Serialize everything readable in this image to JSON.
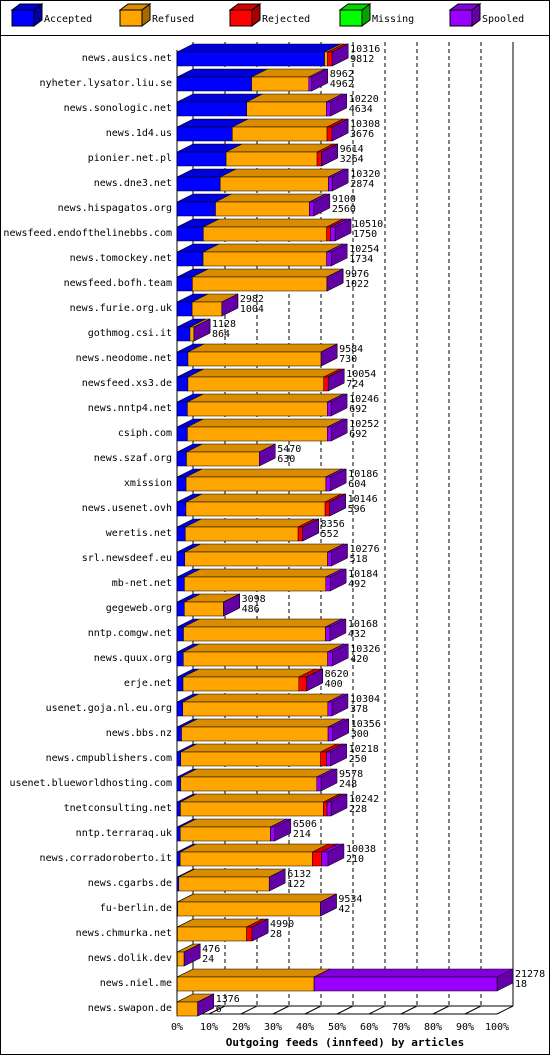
{
  "chart_data": {
    "type": "stacked-bar-3d",
    "orientation": "horizontal",
    "x_label": "Outgoing feeds (innfeed) by articles",
    "categories": [
      "news.ausics.net",
      "nyheter.lysator.liu.se",
      "news.sonologic.net",
      "news.1d4.us",
      "pionier.net.pl",
      "news.dne3.net",
      "news.hispagatos.org",
      "newsfeed.endofthelinebbs.com",
      "news.tomockey.net",
      "newsfeed.bofh.team",
      "news.furie.org.uk",
      "gothmog.csi.it",
      "news.neodome.net",
      "newsfeed.xs3.de",
      "news.nntp4.net",
      "csiph.com",
      "news.szaf.org",
      "xmission",
      "news.usenet.ovh",
      "weretis.net",
      "srl.newsdeef.eu",
      "mb-net.net",
      "gegeweb.org",
      "nntp.comgw.net",
      "news.quux.org",
      "erje.net",
      "usenet.goja.nl.eu.org",
      "news.bbs.nz",
      "news.cmpublishers.com",
      "usenet.blueworldhosting.com",
      "tnetconsulting.net",
      "nntp.terraraq.uk",
      "news.corradoroberto.it",
      "news.cgarbs.de",
      "fu-berlin.de",
      "news.chmurka.net",
      "news.dolik.dev",
      "news.niel.me",
      "news.swapon.de"
    ],
    "totals": [
      10316,
      8962,
      10220,
      10308,
      9614,
      10320,
      9100,
      10510,
      10254,
      9976,
      2982,
      1128,
      9584,
      10054,
      10246,
      10252,
      5470,
      10186,
      10146,
      8356,
      10276,
      10184,
      3098,
      10168,
      10326,
      8620,
      10304,
      10356,
      10218,
      9578,
      10242,
      6506,
      10038,
      6132,
      9534,
      4990,
      476,
      21278,
      1376
    ],
    "series": [
      {
        "name": "Accepted",
        "color": "#0000ff",
        "values": [
          9812,
          4962,
          4634,
          3676,
          3264,
          2874,
          2560,
          1750,
          1734,
          1022,
          1004,
          864,
          730,
          724,
          692,
          692,
          630,
          604,
          596,
          552,
          518,
          492,
          486,
          432,
          420,
          400,
          378,
          300,
          250,
          248,
          228,
          214,
          210,
          122,
          42,
          28,
          24,
          18,
          6
        ]
      },
      {
        "name": "Refused",
        "color": "#ffa500",
        "values": [
          200,
          3800,
          5300,
          6300,
          6050,
          7200,
          6250,
          8200,
          8220,
          8954,
          1978,
          264,
          8854,
          9030,
          9300,
          9300,
          4840,
          9300,
          9250,
          7500,
          9500,
          9400,
          2612,
          9450,
          9600,
          7700,
          9650,
          9750,
          9300,
          9050,
          9500,
          6000,
          8800,
          6010,
          9492,
          4600,
          452,
          9100,
          1370
        ]
      },
      {
        "name": "Rejected",
        "color": "#ff0000",
        "values": [
          304,
          0,
          0,
          332,
          300,
          0,
          0,
          260,
          0,
          0,
          0,
          0,
          0,
          300,
          0,
          0,
          0,
          0,
          300,
          304,
          0,
          0,
          0,
          0,
          0,
          520,
          0,
          0,
          400,
          0,
          250,
          0,
          600,
          0,
          0,
          362,
          0,
          0,
          0
        ]
      },
      {
        "name": "Missing",
        "color": "#00ff00",
        "values": [
          0,
          0,
          0,
          0,
          0,
          0,
          0,
          0,
          0,
          0,
          0,
          0,
          0,
          0,
          0,
          0,
          0,
          0,
          0,
          0,
          0,
          0,
          0,
          0,
          0,
          0,
          0,
          0,
          0,
          0,
          0,
          0,
          0,
          0,
          0,
          0,
          0,
          0,
          0
        ]
      },
      {
        "name": "Spooled",
        "color": "#9900ff",
        "values": [
          0,
          200,
          286,
          0,
          0,
          246,
          290,
          300,
          300,
          0,
          0,
          0,
          0,
          0,
          254,
          260,
          0,
          282,
          0,
          0,
          258,
          292,
          0,
          286,
          306,
          0,
          276,
          306,
          268,
          280,
          264,
          292,
          428,
          0,
          0,
          0,
          0,
          12160,
          0
        ]
      }
    ],
    "xlim": [
      0,
      21278
    ],
    "xticks": [
      {
        "value": 0,
        "label": "0%"
      },
      {
        "value": 2127.8,
        "label": "10%"
      },
      {
        "value": 4255.6,
        "label": "20%"
      },
      {
        "value": 6383.4,
        "label": "30%"
      },
      {
        "value": 8511.2,
        "label": "40%"
      },
      {
        "value": 10639,
        "label": "50%"
      },
      {
        "value": 12766.8,
        "label": "60%"
      },
      {
        "value": 14894.6,
        "label": "70%"
      },
      {
        "value": 17022.4,
        "label": "80%"
      },
      {
        "value": 19150.2,
        "label": "90%"
      },
      {
        "value": 21278,
        "label": "100%"
      }
    ],
    "grid": true
  }
}
